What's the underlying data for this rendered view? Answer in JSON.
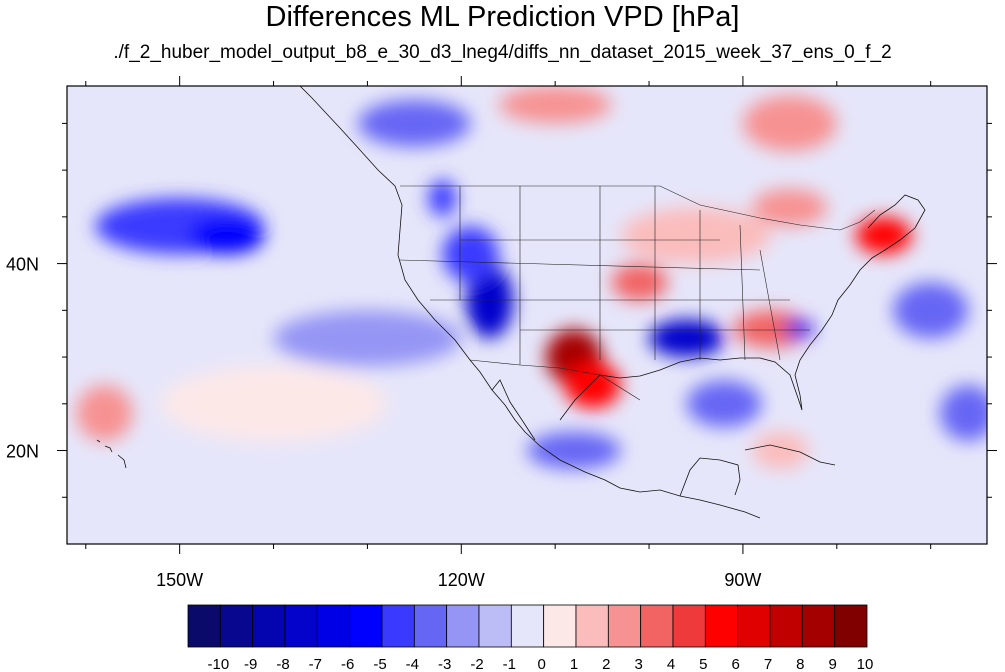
{
  "title": "Differences ML Prediction VPD [hPa]",
  "subtitle": "./f_2_huber_model_output_b8_e_30_d3_lneg4/diffs_nn_dataset_2015_week_37_ens_0_f_2",
  "axes": {
    "lon_range": [
      -162,
      -64
    ],
    "lat_range": [
      10,
      59
    ],
    "lon_ticks": [
      {
        "value": -150,
        "label": "150W"
      },
      {
        "value": -120,
        "label": "120W"
      },
      {
        "value": -90,
        "label": "90W"
      }
    ],
    "lat_ticks": [
      {
        "value": 40,
        "label": "40N"
      },
      {
        "value": 20,
        "label": "20N"
      }
    ]
  },
  "colorbar": {
    "labels": [
      "-10",
      "-9",
      "-8",
      "-7",
      "-6",
      "-5",
      "-4",
      "-3",
      "-2",
      "-1",
      "0",
      "1",
      "2",
      "3",
      "4",
      "5",
      "6",
      "7",
      "8",
      "9",
      "10"
    ],
    "colors": [
      "#0a0a6b",
      "#07078f",
      "#0505b0",
      "#0303cc",
      "#0000e6",
      "#0000ff",
      "#3a3aff",
      "#6666f5",
      "#9595f5",
      "#bcbcf7",
      "#e6e6fa",
      "#fde8e8",
      "#fbbcbc",
      "#f79292",
      "#f26363",
      "#ee3a3a",
      "#ff0000",
      "#e00000",
      "#c00000",
      "#a50000",
      "#800000"
    ]
  },
  "field_blobs": [
    {
      "lon": -150,
      "lat": 44,
      "rx": 9,
      "ry": 3,
      "v": -4
    },
    {
      "lon": -145,
      "lat": 43,
      "rx": 4,
      "ry": 2,
      "v": -5
    },
    {
      "lon": -125,
      "lat": 55,
      "rx": 6,
      "ry": 2.5,
      "v": -3
    },
    {
      "lon": -117,
      "lat": 36,
      "rx": 2.5,
      "ry": 4,
      "v": -7
    },
    {
      "lon": -119,
      "lat": 41,
      "rx": 3,
      "ry": 3,
      "v": -4
    },
    {
      "lon": -122,
      "lat": 47,
      "rx": 1.5,
      "ry": 2,
      "v": -4
    },
    {
      "lon": -108,
      "lat": 30,
      "rx": 3,
      "ry": 3,
      "v": 9
    },
    {
      "lon": -106,
      "lat": 27,
      "rx": 3,
      "ry": 2.5,
      "v": 6
    },
    {
      "lon": -96,
      "lat": 32,
      "rx": 4,
      "ry": 2,
      "v": -7
    },
    {
      "lon": -101,
      "lat": 38,
      "rx": 3,
      "ry": 2,
      "v": 4
    },
    {
      "lon": -87,
      "lat": 33,
      "rx": 4,
      "ry": 2,
      "v": 4
    },
    {
      "lon": -84,
      "lat": 33,
      "rx": 1.5,
      "ry": 1,
      "v": -6
    },
    {
      "lon": -75,
      "lat": 43,
      "rx": 3,
      "ry": 2,
      "v": 6
    },
    {
      "lon": -85,
      "lat": 55,
      "rx": 5,
      "ry": 3,
      "v": 3
    },
    {
      "lon": -110,
      "lat": 57,
      "rx": 6,
      "ry": 2,
      "v": 3
    },
    {
      "lon": -85,
      "lat": 46,
      "rx": 4,
      "ry": 2,
      "v": 3
    },
    {
      "lon": -158,
      "lat": 24,
      "rx": 3,
      "ry": 3,
      "v": 3
    },
    {
      "lon": -108,
      "lat": 20,
      "rx": 5,
      "ry": 2,
      "v": -3
    },
    {
      "lon": -92,
      "lat": 25,
      "rx": 4,
      "ry": 2.5,
      "v": -3
    },
    {
      "lon": -70,
      "lat": 35,
      "rx": 4,
      "ry": 3,
      "v": -3
    },
    {
      "lon": -66,
      "lat": 24,
      "rx": 3,
      "ry": 3,
      "v": -3
    },
    {
      "lon": -130,
      "lat": 32,
      "rx": 10,
      "ry": 3,
      "v": -2
    },
    {
      "lon": -140,
      "lat": 25,
      "rx": 12,
      "ry": 4,
      "v": 1
    },
    {
      "lon": -95,
      "lat": 43,
      "rx": 8,
      "ry": 3,
      "v": 2
    },
    {
      "lon": -86,
      "lat": 20,
      "rx": 3,
      "ry": 2,
      "v": 2
    }
  ]
}
